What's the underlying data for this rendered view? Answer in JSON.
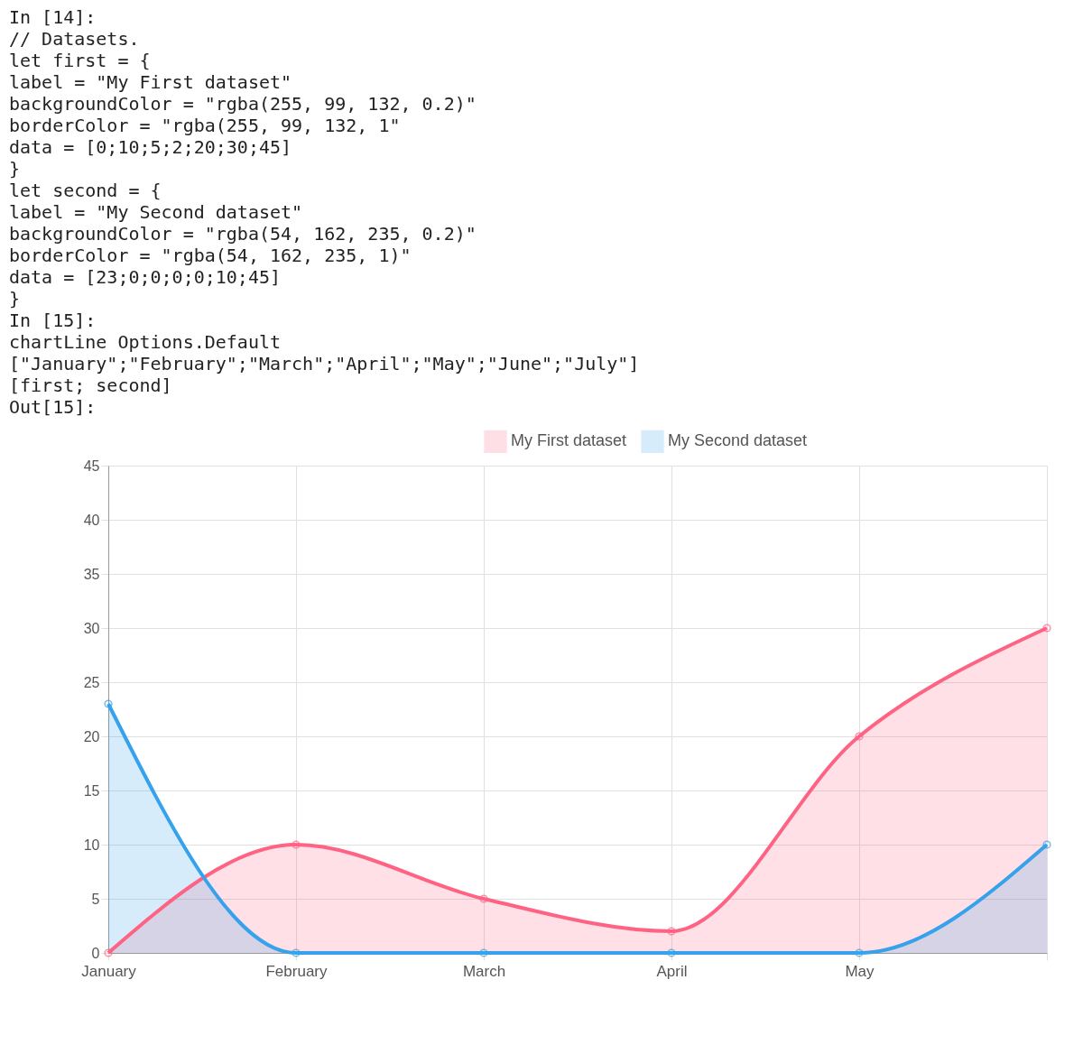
{
  "chart_data": {
    "type": "area",
    "annotations": [
      "In [14]:",
      "// Datasets.",
      "let first = {",
      "      label = \"My First dataset\"",
      "      backgroundColor = \"rgba(255, 99, 132, 0.2)\"",
      "      borderColor = \"rgba(255, 99, 132, 1\"",
      "      data = [0;10;5;2;20;30;45]",
      "   }",
      "let second = {",
      "      label = \"My Second dataset\"",
      "      backgroundColor = \"rgba(54, 162, 235, 0.2)\"",
      "      borderColor = \"rgba(54, 162, 235, 1)\"",
      "      data = [23;0;0;0;0;10;45]",
      "   }",
      "In [15]:",
      "chartLine Options.Default",
      "   [\"January\";\"February\";\"March\";\"April\";\"May\";\"June\";\"July\"]",
      "   [first; second]",
      "Out[15]:"
    ],
    "categories": [
      "January",
      "February",
      "March",
      "April",
      "May",
      null
    ],
    "series": [
      {
        "name": "My First dataset",
        "color": "#ff6384",
        "values": [
          0,
          10,
          5,
          2,
          20,
          30
        ]
      },
      {
        "name": "My Second dataset",
        "color": "#36a2eb",
        "values": [
          23,
          0,
          0,
          0,
          0,
          10
        ]
      }
    ],
    "ylim": [
      0,
      45
    ],
    "yticks": [
      0,
      5,
      10,
      15,
      20,
      25,
      30,
      35,
      40,
      45
    ],
    "grid": true,
    "legend": "top",
    "marker": "circle"
  }
}
